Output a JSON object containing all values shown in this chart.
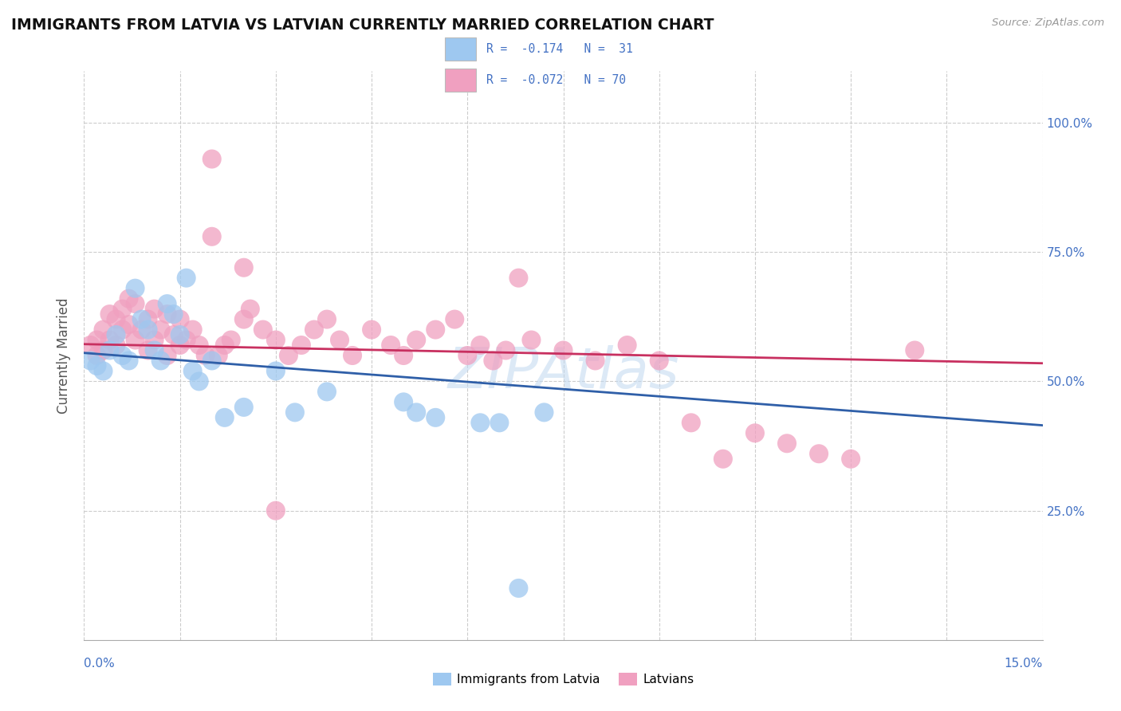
{
  "title": "IMMIGRANTS FROM LATVIA VS LATVIAN CURRENTLY MARRIED CORRELATION CHART",
  "source": "Source: ZipAtlas.com",
  "ylabel": "Currently Married",
  "right_yticklabels": [
    "25.0%",
    "50.0%",
    "75.0%",
    "100.0%"
  ],
  "right_ytick_vals": [
    0.25,
    0.5,
    0.75,
    1.0
  ],
  "xmin": 0.0,
  "xmax": 0.15,
  "ymin": 0.0,
  "ymax": 1.1,
  "color_blue": "#9EC8F0",
  "color_pink": "#F0A0C0",
  "color_blue_line": "#2F5FA8",
  "color_pink_line": "#C83060",
  "color_axis_label": "#4472C4",
  "blue_r": "-0.174",
  "blue_n": "31",
  "pink_r": "-0.072",
  "pink_n": "70",
  "legend_label1": "Immigrants from Latvia",
  "legend_label2": "Latvians",
  "blue_trend_y0": 0.555,
  "blue_trend_y1": 0.415,
  "pink_trend_y0": 0.572,
  "pink_trend_y1": 0.535,
  "background_color": "#FFFFFF",
  "grid_color": "#CCCCCC",
  "blue_x": [
    0.001,
    0.002,
    0.003,
    0.004,
    0.005,
    0.006,
    0.007,
    0.008,
    0.009,
    0.01,
    0.011,
    0.012,
    0.013,
    0.014,
    0.015,
    0.016,
    0.017,
    0.018,
    0.02,
    0.022,
    0.025,
    0.03,
    0.033,
    0.038,
    0.05,
    0.052,
    0.055,
    0.062,
    0.065,
    0.068,
    0.072
  ],
  "blue_y": [
    0.54,
    0.53,
    0.52,
    0.56,
    0.59,
    0.55,
    0.54,
    0.68,
    0.62,
    0.6,
    0.56,
    0.54,
    0.65,
    0.63,
    0.59,
    0.7,
    0.52,
    0.5,
    0.54,
    0.43,
    0.45,
    0.52,
    0.44,
    0.48,
    0.46,
    0.44,
    0.43,
    0.42,
    0.42,
    0.1,
    0.44
  ],
  "pink_x": [
    0.001,
    0.002,
    0.002,
    0.003,
    0.003,
    0.004,
    0.004,
    0.005,
    0.005,
    0.006,
    0.006,
    0.007,
    0.007,
    0.008,
    0.008,
    0.009,
    0.01,
    0.01,
    0.011,
    0.011,
    0.012,
    0.013,
    0.013,
    0.014,
    0.015,
    0.015,
    0.016,
    0.017,
    0.018,
    0.019,
    0.02,
    0.021,
    0.022,
    0.023,
    0.025,
    0.026,
    0.028,
    0.03,
    0.032,
    0.034,
    0.036,
    0.038,
    0.04,
    0.042,
    0.045,
    0.048,
    0.05,
    0.052,
    0.055,
    0.058,
    0.06,
    0.062,
    0.064,
    0.066,
    0.068,
    0.07,
    0.075,
    0.08,
    0.085,
    0.09,
    0.095,
    0.1,
    0.105,
    0.11,
    0.115,
    0.12,
    0.13,
    0.02,
    0.025,
    0.03
  ],
  "pink_y": [
    0.57,
    0.58,
    0.55,
    0.6,
    0.56,
    0.63,
    0.58,
    0.57,
    0.62,
    0.6,
    0.64,
    0.66,
    0.61,
    0.65,
    0.58,
    0.6,
    0.62,
    0.56,
    0.64,
    0.58,
    0.6,
    0.63,
    0.55,
    0.59,
    0.57,
    0.62,
    0.58,
    0.6,
    0.57,
    0.55,
    0.78,
    0.55,
    0.57,
    0.58,
    0.62,
    0.64,
    0.6,
    0.58,
    0.55,
    0.57,
    0.6,
    0.62,
    0.58,
    0.55,
    0.6,
    0.57,
    0.55,
    0.58,
    0.6,
    0.62,
    0.55,
    0.57,
    0.54,
    0.56,
    0.7,
    0.58,
    0.56,
    0.54,
    0.57,
    0.54,
    0.42,
    0.35,
    0.4,
    0.38,
    0.36,
    0.35,
    0.56,
    0.93,
    0.72,
    0.25
  ]
}
